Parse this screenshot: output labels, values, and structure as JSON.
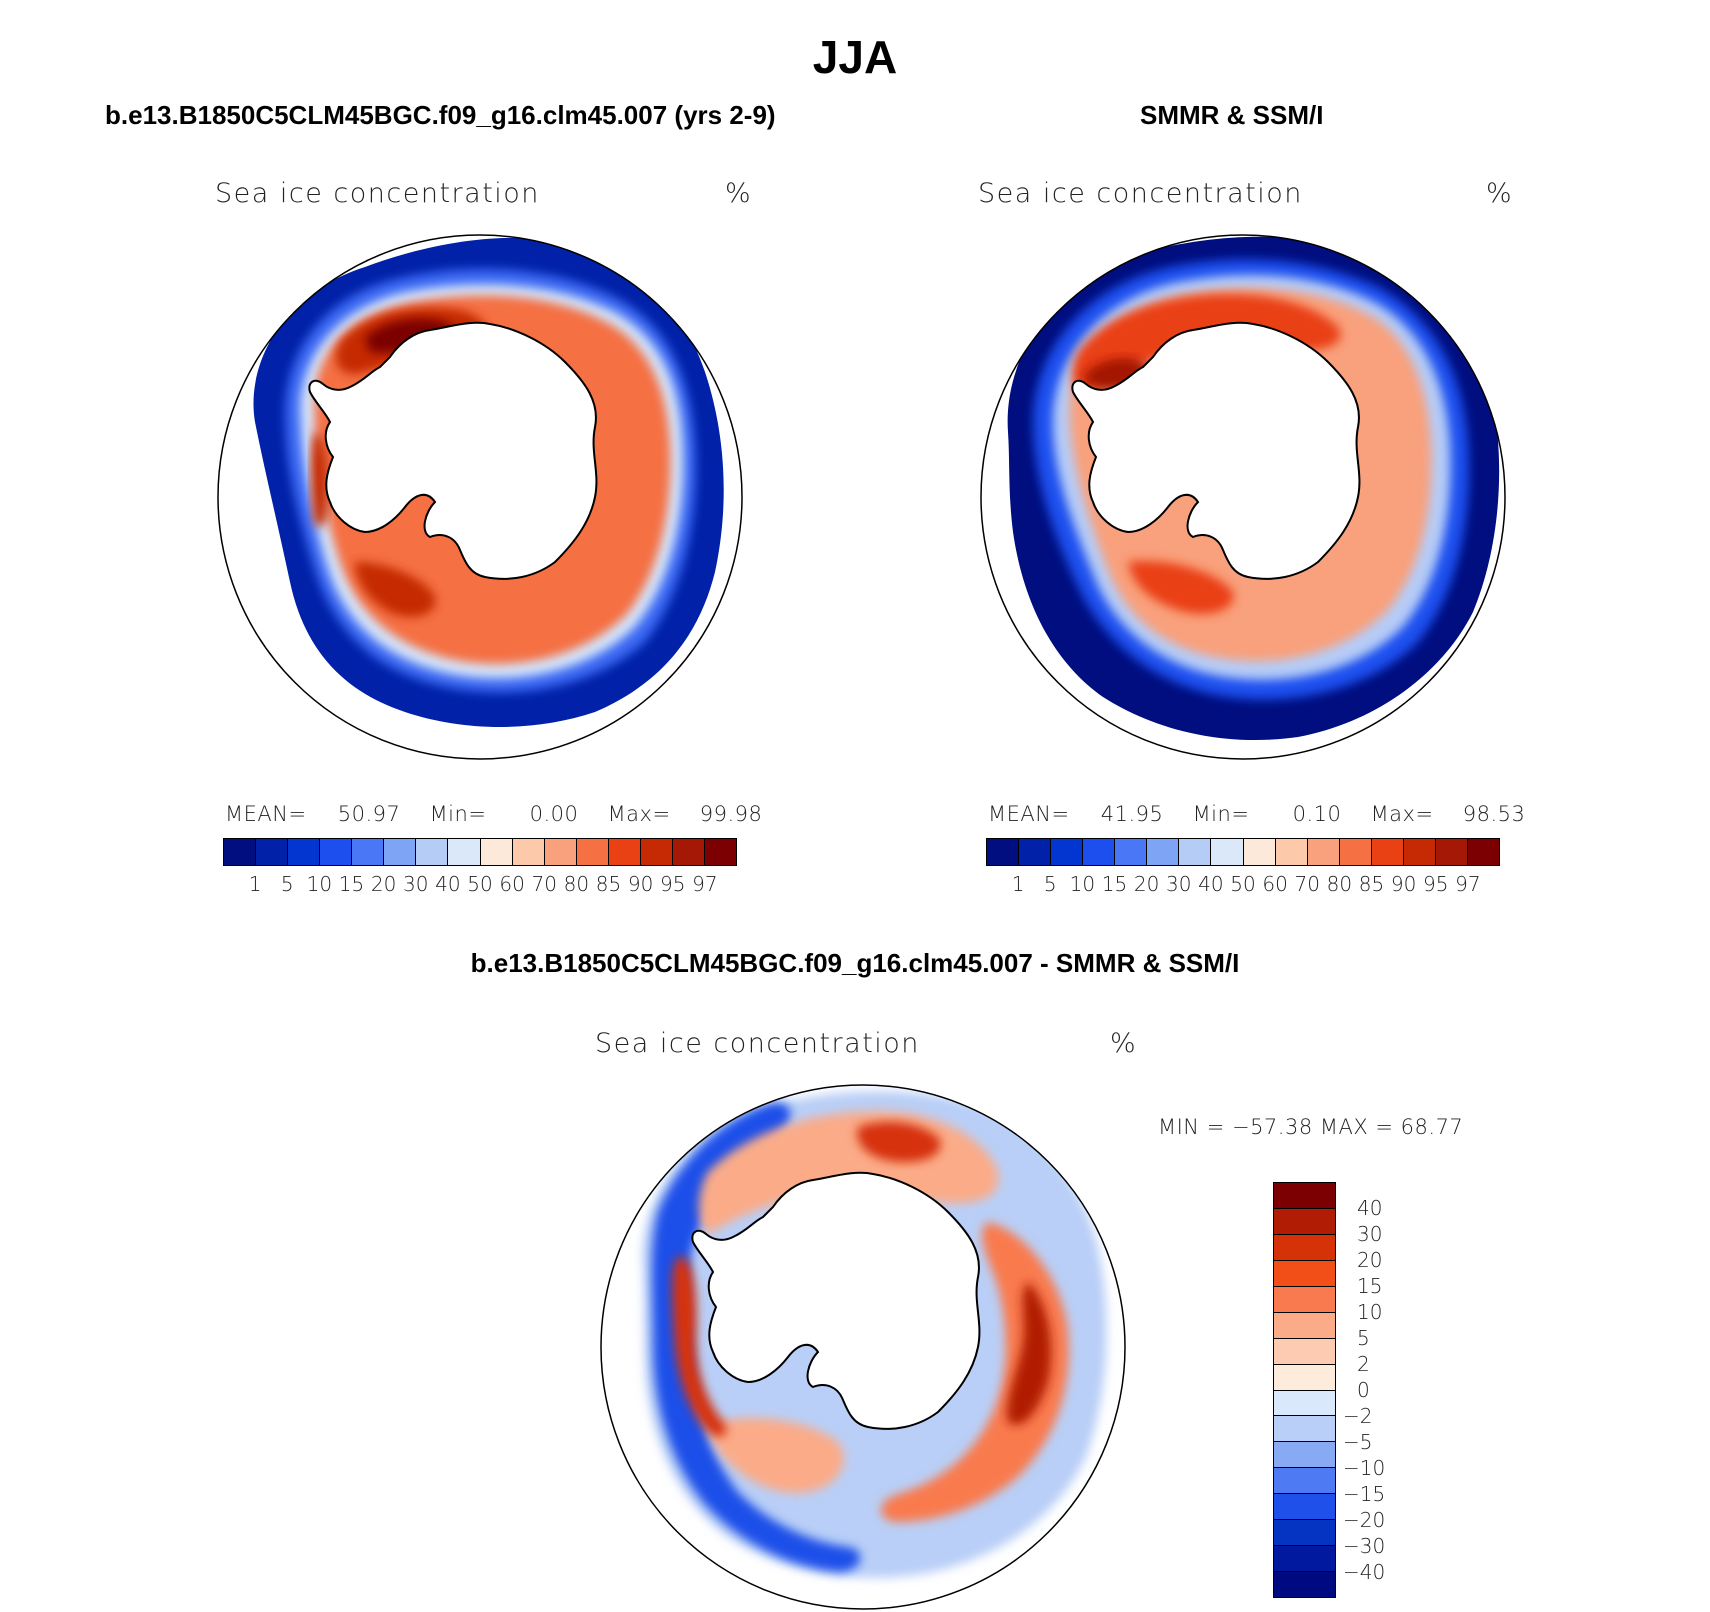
{
  "main_title": "JJA",
  "panels": [
    {
      "title": "b.e13.B1850C5CLM45BGC.f09_g16.clm45.007 (yrs 2-9)",
      "variable": "Sea ice concentration",
      "units": "%",
      "stats": {
        "mean_label": "MEAN=",
        "mean": "50.97",
        "min_label": "Min=",
        "min": "0.00",
        "max_label": "Max=",
        "max": "99.98"
      }
    },
    {
      "title": "SMMR & SSM/I",
      "variable": "Sea ice concentration",
      "units": "%",
      "stats": {
        "mean_label": "MEAN=",
        "mean": "41.95",
        "min_label": "Min=",
        "min": "0.10",
        "max_label": "Max=",
        "max": "98.53"
      }
    },
    {
      "title": "b.e13.B1850C5CLM45BGC.f09_g16.clm45.007 - SMMR & SSM/I",
      "variable": "Sea ice concentration",
      "units": "%",
      "minmax": "MIN = −57.38 MAX =  68.77"
    }
  ],
  "abs_colorbar": {
    "labels": [
      "1",
      "5",
      "10",
      "15",
      "20",
      "30",
      "40",
      "50",
      "60",
      "70",
      "80",
      "85",
      "90",
      "95",
      "97"
    ],
    "colors": [
      "#000e80",
      "#0021a8",
      "#0336d0",
      "#1d4fef",
      "#4a77f5",
      "#7ea4f6",
      "#b5ccf7",
      "#dbe8fa",
      "#fde9d9",
      "#fcc9ab",
      "#f9a07c",
      "#f57042",
      "#ea4114",
      "#c52a05",
      "#a41805",
      "#7c0002"
    ]
  },
  "diff_colorbar": {
    "labels": [
      "40",
      "30",
      "20",
      "15",
      "10",
      "5",
      "2",
      "0",
      "−2",
      "−5",
      "−10",
      "−15",
      "−20",
      "−30",
      "−40"
    ],
    "colors": [
      "#7c0002",
      "#b11c05",
      "#d63208",
      "#f24e18",
      "#f97a4e",
      "#fbab88",
      "#fccbb2",
      "#fdebdc",
      "#d9e8fb",
      "#b9cff7",
      "#88aaf5",
      "#4e7bf4",
      "#1f50e9",
      "#0534c2",
      "#00199e",
      "#000a80"
    ]
  }
}
